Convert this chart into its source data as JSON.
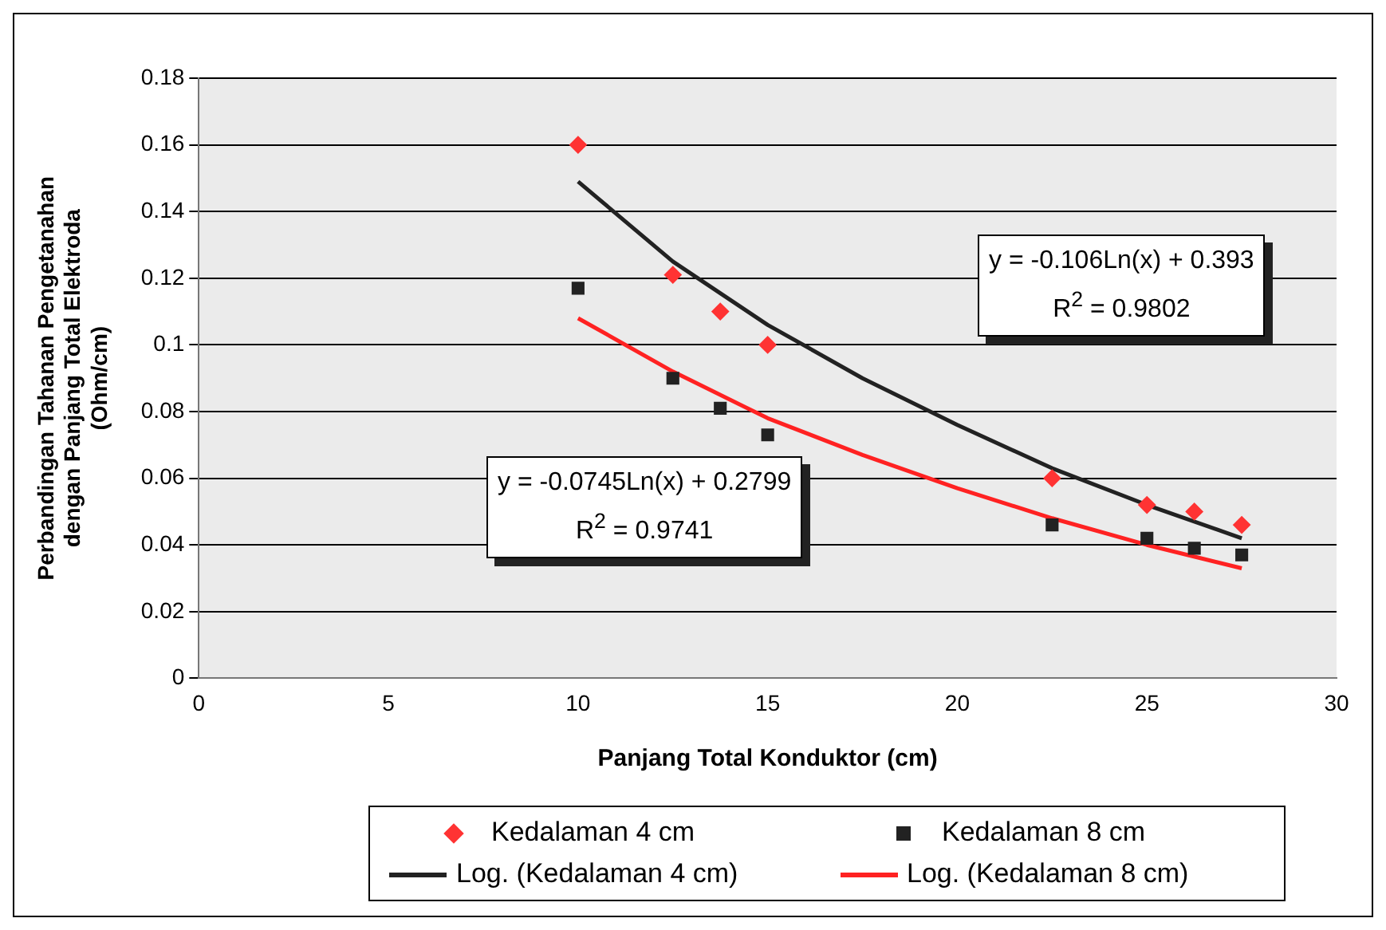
{
  "chart_data": {
    "type": "scatter",
    "xlabel": "Panjang Total Konduktor (cm)",
    "ylabel": "Perbandingan Tahanan Pengetanahan dengan Panjang Total Elektroda (Ohm/cm)",
    "xlim": [
      0,
      30
    ],
    "xticks": [
      0,
      5,
      10,
      15,
      20,
      25,
      30
    ],
    "ylim": [
      0,
      0.18
    ],
    "yticks": [
      0,
      0.02,
      0.04,
      0.06,
      0.08,
      0.1,
      0.12,
      0.14,
      0.16,
      0.18
    ],
    "grid": "y",
    "legend": "bottom",
    "series": [
      {
        "name": "Kedalaman 4 cm",
        "marker": "diamond",
        "color": "#ff3333",
        "x": [
          10,
          12.5,
          13.75,
          15,
          22.5,
          25,
          26.25,
          27.5
        ],
        "values": [
          0.16,
          0.121,
          0.11,
          0.1,
          0.06,
          0.052,
          0.05,
          0.046
        ]
      },
      {
        "name": "Kedalaman 8 cm",
        "marker": "square",
        "color": "#222222",
        "x": [
          10,
          12.5,
          13.75,
          15,
          22.5,
          25,
          26.25,
          27.5
        ],
        "values": [
          0.117,
          0.09,
          0.081,
          0.073,
          0.046,
          0.042,
          0.039,
          0.037
        ]
      },
      {
        "name": "Log. (Kedalaman 4 cm)",
        "type": "line",
        "marker": "none",
        "color": "#222222",
        "x": [
          10,
          12.5,
          15,
          17.5,
          20,
          22.5,
          25,
          27.5
        ],
        "values": [
          0.149,
          0.125,
          0.106,
          0.09,
          0.076,
          0.063,
          0.052,
          0.042
        ]
      },
      {
        "name": "Log. (Kedalaman 8 cm)",
        "type": "line",
        "marker": "none",
        "color": "#ff2222",
        "x": [
          10,
          12.5,
          15,
          17.5,
          20,
          22.5,
          25,
          27.5
        ],
        "values": [
          0.108,
          0.092,
          0.078,
          0.067,
          0.057,
          0.048,
          0.04,
          0.033
        ]
      }
    ],
    "annotations": [
      "y = -0.106Ln(x) + 0.393\nR$^{2}$ = 0.9802",
      "y = -0.0745Ln(x) + 0.2799\nR$^{2}$ = 0.9741"
    ]
  }
}
